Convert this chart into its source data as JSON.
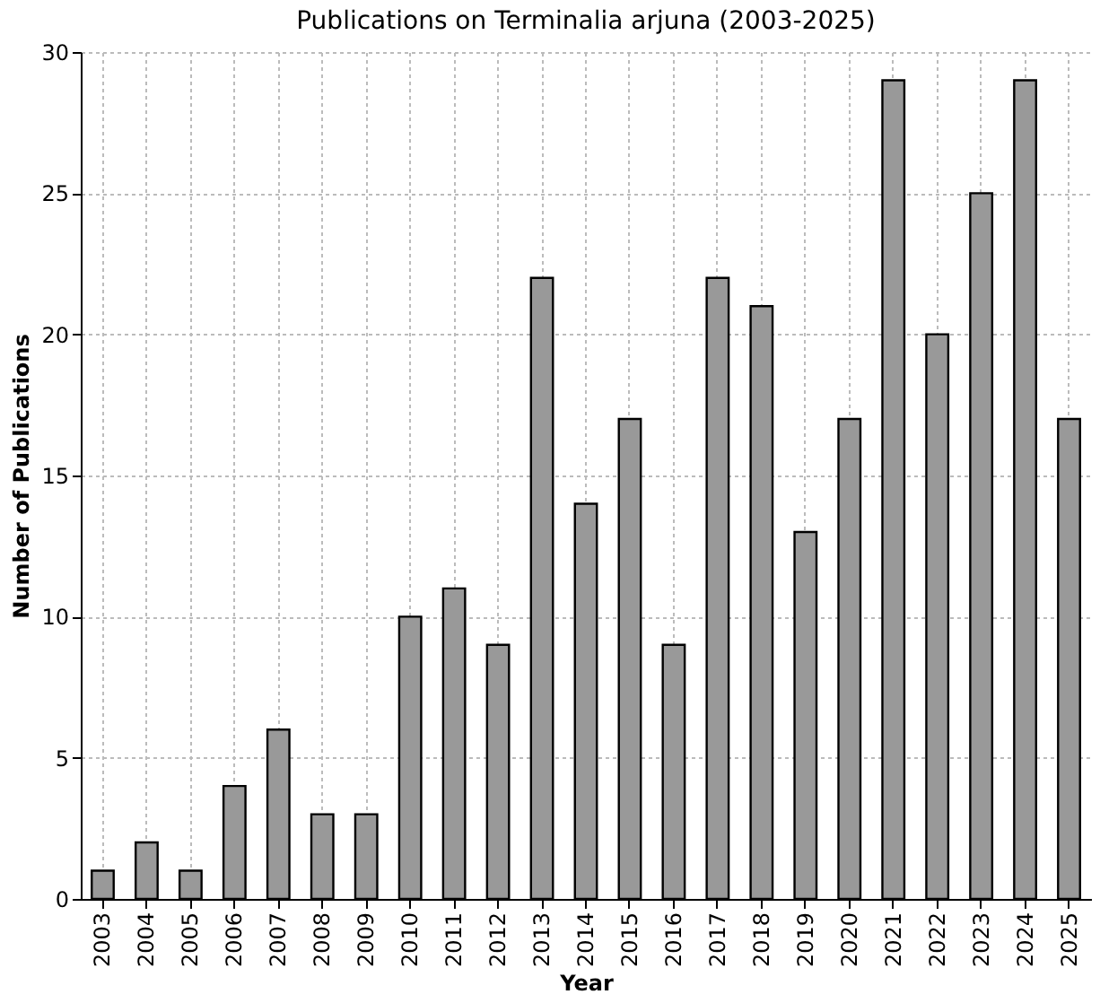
{
  "chart_data": {
    "type": "bar",
    "title": "Publications on Terminalia arjuna (2003-2025)",
    "xlabel": "Year",
    "ylabel": "Number of Publications",
    "categories": [
      "2003",
      "2004",
      "2005",
      "2006",
      "2007",
      "2008",
      "2009",
      "2010",
      "2011",
      "2012",
      "2013",
      "2014",
      "2015",
      "2016",
      "2017",
      "2018",
      "2019",
      "2020",
      "2021",
      "2022",
      "2023",
      "2024",
      "2025"
    ],
    "values": [
      1,
      2,
      1,
      4,
      6,
      3,
      3,
      10,
      11,
      9,
      22,
      14,
      17,
      9,
      22,
      21,
      13,
      17,
      29,
      20,
      25,
      29,
      17
    ],
    "color": "#999999",
    "ylim": [
      0,
      30
    ],
    "yticks": [
      0,
      5,
      10,
      15,
      20,
      25,
      30
    ],
    "grid": true
  }
}
